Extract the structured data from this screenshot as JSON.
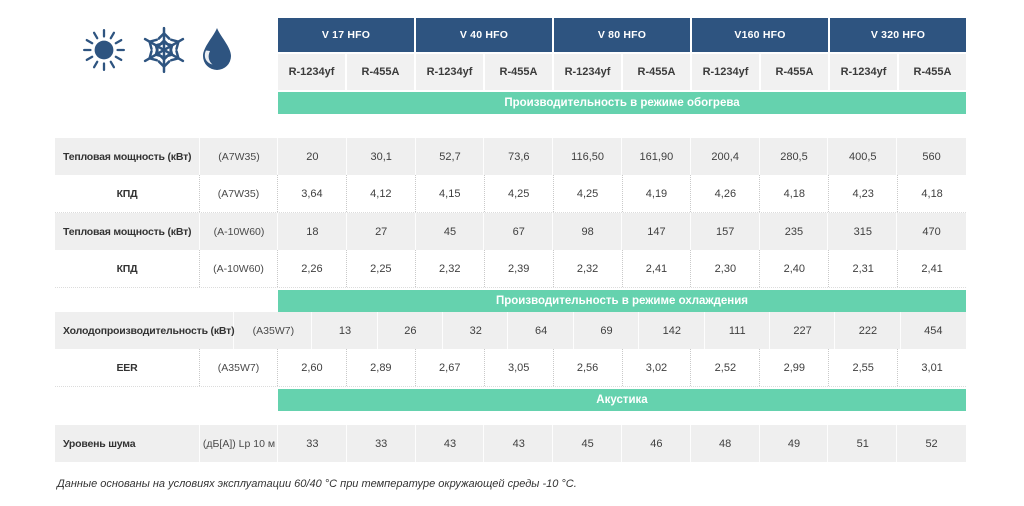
{
  "colors": {
    "header_blue": "#2E5480",
    "band_green": "#65D2AE",
    "row_gray": "#EFEFEF"
  },
  "icons": [
    {
      "name": "sun-icon"
    },
    {
      "name": "snowflake-icon"
    },
    {
      "name": "droplet-icon"
    }
  ],
  "header": {
    "models": [
      "V 17 HFO",
      "V 40 HFO",
      "V 80 HFO",
      "V160 HFO",
      "V 320 HFO"
    ],
    "refrigerants": [
      "R-1234yf",
      "R-455A"
    ]
  },
  "sections": [
    {
      "band": "Производительность в режиме обогрева",
      "gap_after_band": 24,
      "rows": [
        {
          "label": "Тепловая мощность (кВт)",
          "condition": "(A7W35)",
          "values": [
            "20",
            "30,1",
            "52,7",
            "73,6",
            "116,50",
            "161,90",
            "200,4",
            "280,5",
            "400,5",
            "560"
          ]
        },
        {
          "label": "КПД",
          "condition": "(A7W35)",
          "values": [
            "3,64",
            "4,12",
            "4,15",
            "4,25",
            "4,25",
            "4,19",
            "4,26",
            "4,18",
            "4,23",
            "4,18"
          ]
        },
        {
          "label": "Тепловая мощность (кВт)",
          "condition": "(A-10W60)",
          "values": [
            "18",
            "27",
            "45",
            "67",
            "98",
            "147",
            "157",
            "235",
            "315",
            "470"
          ]
        },
        {
          "label": "КПД",
          "condition": "(A-10W60)",
          "values": [
            "2,26",
            "2,25",
            "2,32",
            "2,39",
            "2,32",
            "2,41",
            "2,30",
            "2,40",
            "2,31",
            "2,41"
          ]
        }
      ]
    },
    {
      "band": "Производительность в режиме охлаждения",
      "gap_after_band": 0,
      "rows": [
        {
          "label": "Холодопроизводительность (кВт)",
          "condition": "(A35W7)",
          "values": [
            "13",
            "26",
            "32",
            "64",
            "69",
            "142",
            "111",
            "227",
            "222",
            "454"
          ]
        },
        {
          "label": "EER",
          "condition": "(A35W7)",
          "values": [
            "2,60",
            "2,89",
            "2,67",
            "3,05",
            "2,56",
            "3,02",
            "2,52",
            "2,99",
            "2,55",
            "3,01"
          ]
        }
      ]
    },
    {
      "band": "Акустика",
      "gap_after_band": 14,
      "rows": [
        {
          "label": "Уровень шума",
          "condition": "(дБ[А]) Lp 10 м",
          "values": [
            "33",
            "33",
            "43",
            "43",
            "45",
            "46",
            "48",
            "49",
            "51",
            "52"
          ]
        }
      ]
    }
  ],
  "footnote": "Данные основаны на условиях эксплуатации 60/40 °C при температуре окружающей среды -10 °C."
}
